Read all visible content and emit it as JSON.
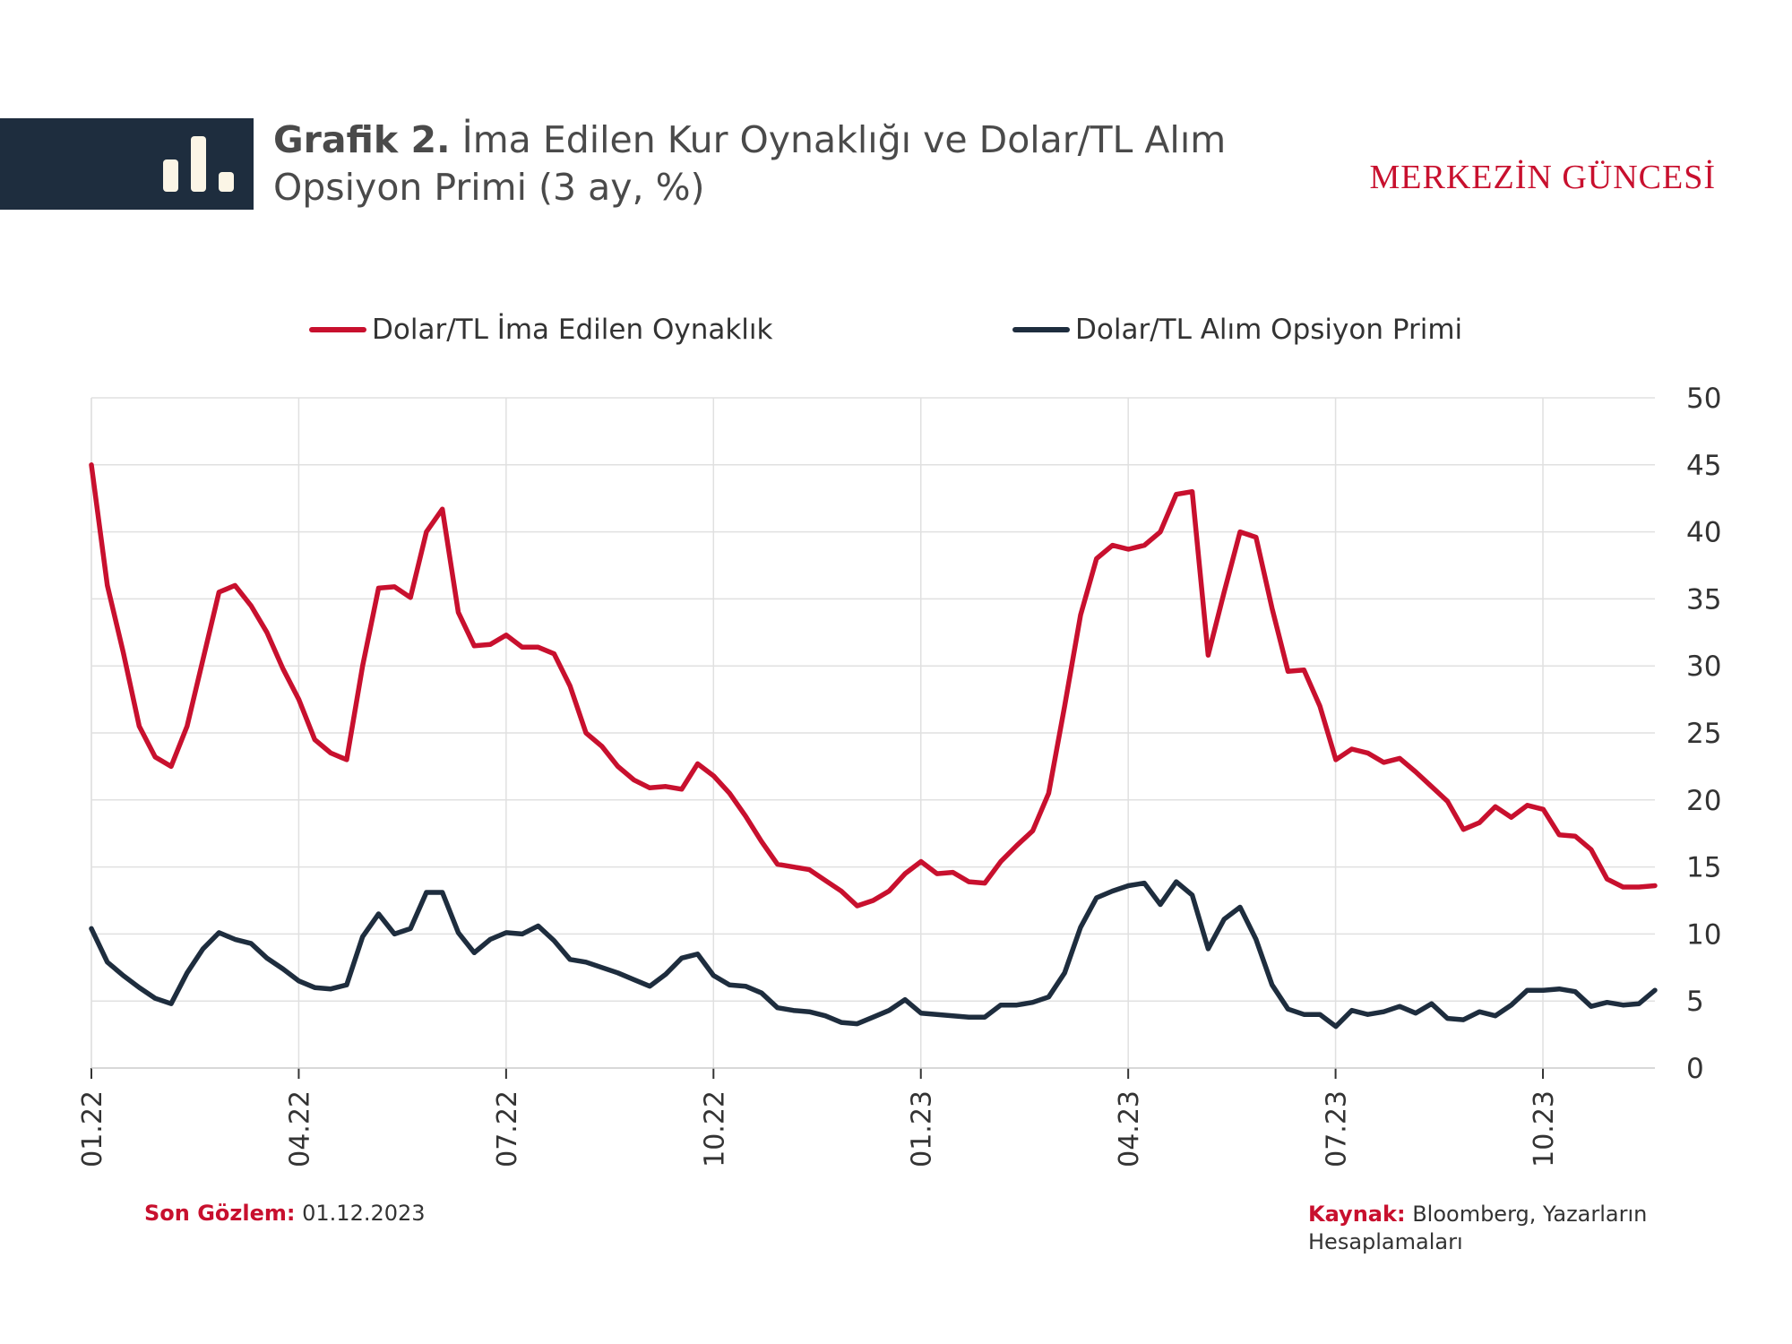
{
  "header": {
    "title_prefix": "Grafik 2.",
    "title_text": "İma Edilen Kur Oynaklığı ve Dolar/TL Alım",
    "title_line2": "Opsiyon Primi (3 ay, %)",
    "brand": "MERKEZİN GÜNCESİ"
  },
  "colors": {
    "implied_vol": "#c8102e",
    "call_premium": "#1e2d3e",
    "header_block": "#1e2d3e",
    "grid": "#e0e0e0"
  },
  "footer": {
    "last_obs_label": "Son Gözlem:",
    "last_obs_value": "01.12.2023",
    "source_label": "Kaynak:",
    "source_value": "Bloomberg, Yazarların Hesaplamaları"
  },
  "chart_data": {
    "type": "line",
    "x_tick_labels": [
      "01.22",
      "04.22",
      "07.22",
      "10.22",
      "01.23",
      "04.23",
      "07.23",
      "10.23"
    ],
    "y_axis_position": "right",
    "ylim": [
      0,
      50
    ],
    "y_ticks": [
      0,
      5,
      10,
      15,
      20,
      25,
      30,
      35,
      40,
      45,
      50
    ],
    "grid": true,
    "legend_position": "top",
    "series": [
      {
        "name": "Dolar/TL İma Edilen Oynaklık",
        "color_key": "implied_vol",
        "values": [
          45.0,
          36.0,
          31.0,
          25.5,
          23.2,
          22.5,
          25.5,
          30.5,
          35.5,
          36.0,
          34.5,
          32.5,
          29.8,
          27.5,
          24.5,
          23.5,
          23.0,
          30.0,
          35.8,
          35.9,
          35.1,
          40.0,
          41.7,
          34.0,
          31.5,
          31.6,
          32.3,
          31.4,
          31.4,
          30.9,
          28.5,
          25.0,
          24.0,
          22.5,
          21.5,
          20.9,
          21.0,
          20.8,
          22.7,
          21.8,
          20.5,
          18.8,
          16.9,
          15.2,
          15.0,
          14.8,
          14.0,
          13.2,
          12.1,
          12.5,
          13.2,
          14.5,
          15.4,
          14.5,
          14.6,
          13.9,
          13.8,
          15.4,
          16.6,
          17.7,
          20.5,
          27.0,
          33.8,
          38.0,
          39.0,
          38.7,
          39.0,
          40.0,
          42.8,
          43.0,
          30.8,
          35.5,
          40.0,
          39.6,
          34.3,
          29.6,
          29.7,
          27.0,
          23.0,
          23.8,
          23.5,
          22.8,
          23.1,
          22.1,
          21.0,
          19.9,
          17.8,
          18.3,
          19.5,
          18.7,
          19.6,
          19.3,
          17.4,
          17.3,
          16.3,
          14.1,
          13.5,
          13.5,
          13.6
        ]
      },
      {
        "name": "Dolar/TL Alım Opsiyon Primi",
        "color_key": "call_premium",
        "values": [
          10.4,
          7.9,
          6.9,
          6.0,
          5.2,
          4.8,
          7.1,
          8.9,
          10.1,
          9.6,
          9.3,
          8.2,
          7.4,
          6.5,
          6.0,
          5.9,
          6.2,
          9.8,
          11.5,
          10.0,
          10.4,
          13.1,
          13.1,
          10.1,
          8.6,
          9.6,
          10.1,
          10.0,
          10.6,
          9.5,
          8.1,
          7.9,
          7.5,
          7.1,
          6.6,
          6.1,
          7.0,
          8.2,
          8.5,
          6.9,
          6.2,
          6.1,
          5.6,
          4.5,
          4.3,
          4.2,
          3.9,
          3.4,
          3.3,
          3.8,
          4.3,
          5.1,
          4.1,
          4.0,
          3.9,
          3.8,
          3.8,
          4.7,
          4.7,
          4.9,
          5.3,
          7.1,
          10.5,
          12.7,
          13.2,
          13.6,
          13.8,
          12.2,
          13.9,
          12.9,
          8.9,
          11.1,
          12.0,
          9.6,
          6.2,
          4.4,
          4.0,
          4.0,
          3.1,
          4.3,
          4.0,
          4.2,
          4.6,
          4.1,
          4.8,
          3.7,
          3.6,
          4.2,
          3.9,
          4.7,
          5.8,
          5.8,
          5.9,
          5.7,
          4.6,
          4.9,
          4.7,
          4.8,
          5.8
        ]
      }
    ]
  }
}
